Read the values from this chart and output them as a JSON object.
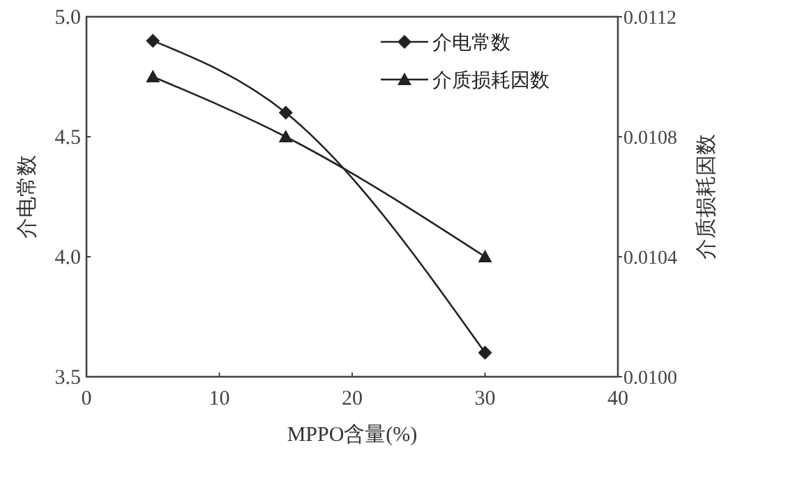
{
  "chart_data": {
    "type": "line",
    "xlabel": "MPPO含量(%)",
    "ylabel": "介电常数",
    "y2label": "介质损耗因数",
    "x": [
      5,
      15,
      30
    ],
    "series": [
      {
        "name": "介电常数",
        "color": "#222222",
        "values": [
          4.9,
          4.6,
          3.6
        ],
        "marker": "diamond"
      },
      {
        "name": "介质损耗因数",
        "color": "#222222",
        "values": [
          0.011,
          0.0108,
          0.0104
        ],
        "marker": "triangle",
        "axis": "y2"
      }
    ],
    "xlim": [
      0,
      40
    ],
    "xticks": [
      0,
      10,
      20,
      30,
      40
    ],
    "ylim": [
      3.5,
      5.0
    ],
    "yticks": [
      {
        "value": 3.5,
        "label": "3.5"
      },
      {
        "value": 4.0,
        "label": "4.0"
      },
      {
        "value": 4.5,
        "label": "4.5"
      },
      {
        "value": 5.0,
        "label": "5.0"
      }
    ],
    "y2lim": [
      0.01,
      0.0112
    ],
    "y2ticks": [
      {
        "value": 0.01,
        "label": "0.0100"
      },
      {
        "value": 0.0104,
        "label": "0.0104"
      },
      {
        "value": 0.0108,
        "label": "0.0108"
      },
      {
        "value": 0.0112,
        "label": "0.0112"
      }
    ],
    "legend": "top right",
    "grid": false,
    "line_style": "solid"
  }
}
